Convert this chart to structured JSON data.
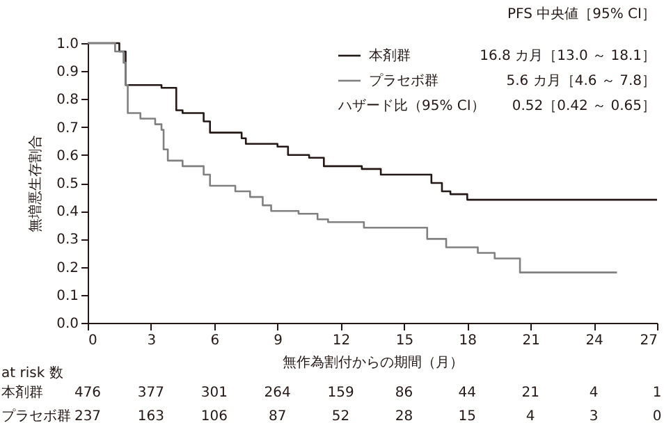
{
  "chart_data": {
    "type": "step",
    "xlabel": "無作為割付からの期間（月）",
    "ylabel": "無増悪生存割合",
    "xlim": [
      0,
      27
    ],
    "xticks": [
      0,
      3,
      6,
      9,
      12,
      15,
      18,
      21,
      24,
      27
    ],
    "ylim": [
      0,
      1
    ],
    "yticks": [
      {
        "value": 0,
        "label": "0.0"
      },
      0.1,
      0.2,
      0.3,
      0.4,
      0.5,
      0.6,
      0.7,
      0.8,
      0.9,
      {
        "value": 1,
        "label": "1.0"
      }
    ],
    "grid": false,
    "legend": "top right",
    "series": [
      {
        "name": "本剤群",
        "color": "#231815",
        "x": [
          0,
          1.5,
          1.8,
          3.5,
          4.2,
          4.5,
          5.5,
          5.8,
          7.3,
          7.5,
          9.0,
          9.5,
          10.5,
          11.2,
          13.0,
          13.9,
          16.3,
          16.8,
          17.2,
          18.0,
          27
        ],
        "values": [
          1.0,
          0.97,
          0.85,
          0.84,
          0.76,
          0.75,
          0.72,
          0.68,
          0.66,
          0.64,
          0.63,
          0.6,
          0.59,
          0.56,
          0.55,
          0.53,
          0.5,
          0.47,
          0.46,
          0.44,
          0.44
        ]
      },
      {
        "name": "プラセボ群",
        "color": "#808080",
        "x": [
          0,
          1.3,
          1.7,
          1.8,
          1.9,
          2.5,
          3.2,
          3.5,
          3.6,
          3.8,
          4.5,
          5.5,
          5.8,
          7.0,
          7.7,
          8.3,
          8.7,
          10.0,
          10.9,
          11.4,
          13.1,
          16.1,
          17.0,
          18.5,
          19.3,
          20.5,
          25.1
        ],
        "values": [
          1.0,
          0.97,
          0.93,
          0.85,
          0.75,
          0.73,
          0.71,
          0.69,
          0.62,
          0.58,
          0.56,
          0.53,
          0.49,
          0.47,
          0.45,
          0.42,
          0.4,
          0.39,
          0.37,
          0.36,
          0.34,
          0.3,
          0.27,
          0.25,
          0.23,
          0.18,
          0.18
        ]
      }
    ],
    "annotations": [
      "PFS 中央値［95% CI］",
      "16.8 カ月［13.0 ～ 18.1］",
      "5.6 カ月［4.6 ～ 7.8］",
      "ハザード比（95% CI）",
      "0.52［0.42 ～ 0.65］",
      "at risk 数",
      "本剤群",
      "476",
      "377",
      "301",
      "264",
      "159",
      "86",
      "44",
      "21",
      "4",
      "1",
      "プラセボ群",
      "237",
      "163",
      "106",
      "87",
      "52",
      "28",
      "15",
      "4",
      "3",
      "0"
    ]
  }
}
